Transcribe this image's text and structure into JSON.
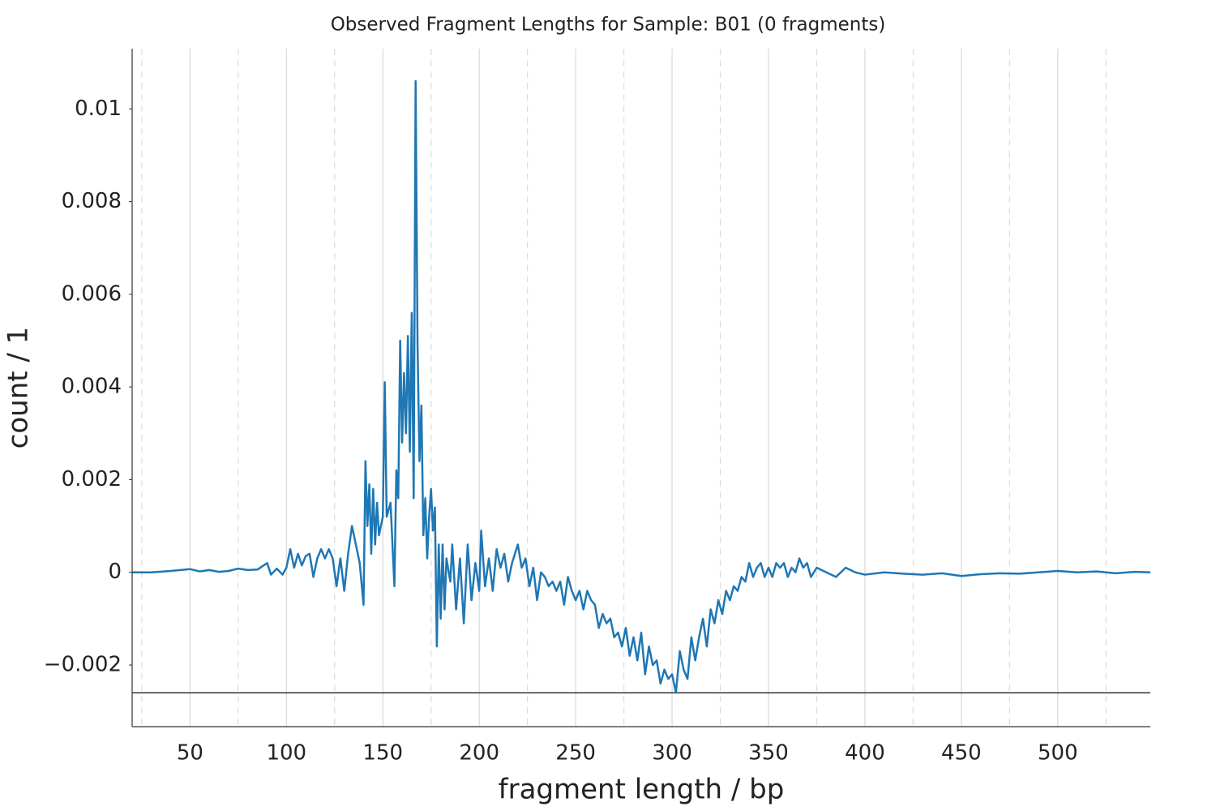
{
  "chart_data": {
    "type": "line",
    "title": "Observed Fragment Lengths for Sample: B01 (0 fragments)",
    "xlabel": "fragment length / bp",
    "ylabel": "count / 1",
    "x": [
      20,
      30,
      40,
      50,
      55,
      60,
      65,
      70,
      75,
      80,
      85,
      90,
      92,
      95,
      98,
      100,
      102,
      104,
      106,
      108,
      110,
      112,
      114,
      116,
      118,
      120,
      122,
      124,
      126,
      128,
      130,
      132,
      134,
      136,
      138,
      140,
      141,
      142,
      143,
      144,
      145,
      146,
      147,
      148,
      150,
      151,
      152,
      154,
      156,
      157,
      158,
      159,
      160,
      161,
      162,
      163,
      164,
      165,
      166,
      167,
      168,
      169,
      170,
      171,
      172,
      173,
      174,
      175,
      176,
      177,
      178,
      179,
      180,
      181,
      182,
      183,
      185,
      186,
      188,
      190,
      192,
      194,
      196,
      198,
      200,
      201,
      203,
      205,
      207,
      209,
      211,
      213,
      215,
      217,
      220,
      222,
      224,
      226,
      228,
      230,
      232,
      234,
      236,
      238,
      240,
      242,
      244,
      246,
      248,
      250,
      252,
      254,
      256,
      258,
      260,
      262,
      264,
      266,
      268,
      270,
      272,
      274,
      276,
      278,
      280,
      282,
      284,
      286,
      288,
      290,
      292,
      294,
      296,
      298,
      300,
      302,
      304,
      306,
      308,
      310,
      312,
      314,
      316,
      318,
      320,
      322,
      324,
      326,
      328,
      330,
      332,
      334,
      336,
      338,
      340,
      342,
      344,
      346,
      348,
      350,
      352,
      354,
      356,
      358,
      360,
      362,
      364,
      366,
      368,
      370,
      372,
      375,
      380,
      385,
      390,
      395,
      400,
      410,
      420,
      430,
      440,
      450,
      460,
      470,
      480,
      490,
      500,
      510,
      520,
      530,
      540,
      548
    ],
    "values": [
      0,
      0,
      3e-05,
      7e-05,
      2e-05,
      5e-05,
      1e-05,
      3e-05,
      8e-05,
      5e-05,
      6e-05,
      0.0002,
      -5e-05,
      8e-05,
      -5e-05,
      0.0001,
      0.0005,
      0.0001,
      0.0004,
      0.00015,
      0.00035,
      0.0004,
      -0.0001,
      0.0003,
      0.0005,
      0.0003,
      0.0005,
      0.0003,
      -0.0003,
      0.0003,
      -0.0004,
      0.0004,
      0.001,
      0.0006,
      0.0002,
      -0.0007,
      0.0024,
      0.001,
      0.0019,
      0.0004,
      0.0018,
      0.0006,
      0.0015,
      0.0008,
      0.0012,
      0.0041,
      0.0012,
      0.0015,
      -0.0003,
      0.0022,
      0.0016,
      0.005,
      0.0028,
      0.0043,
      0.003,
      0.0051,
      0.0026,
      0.0056,
      0.0016,
      0.0106,
      0.0049,
      0.0024,
      0.0036,
      0.0008,
      0.0016,
      0.0003,
      0.0012,
      0.0018,
      0.0009,
      0.0014,
      -0.0016,
      0.0006,
      -0.001,
      0.0006,
      -0.0008,
      0.0003,
      -0.0002,
      0.0006,
      -0.0008,
      0.0003,
      -0.0011,
      0.0006,
      -0.0006,
      0.0002,
      -0.0004,
      0.0009,
      -0.0003,
      0.0003,
      -0.0004,
      0.0005,
      0.0001,
      0.0004,
      -0.0002,
      0.0002,
      0.0006,
      0.0001,
      0.0003,
      -0.0003,
      0.0001,
      -0.0006,
      0,
      -0.0001,
      -0.0003,
      -0.0002,
      -0.0004,
      -0.0002,
      -0.0007,
      -0.0001,
      -0.0004,
      -0.0006,
      -0.0004,
      -0.0008,
      -0.0004,
      -0.0006,
      -0.0007,
      -0.0012,
      -0.0009,
      -0.0011,
      -0.001,
      -0.0014,
      -0.0013,
      -0.0016,
      -0.0012,
      -0.0018,
      -0.0014,
      -0.0019,
      -0.0013,
      -0.0022,
      -0.0016,
      -0.002,
      -0.0019,
      -0.0024,
      -0.0021,
      -0.0023,
      -0.0022,
      -0.0026,
      -0.0017,
      -0.0021,
      -0.0023,
      -0.0014,
      -0.0019,
      -0.0014,
      -0.001,
      -0.0016,
      -0.0008,
      -0.0011,
      -0.0006,
      -0.0009,
      -0.0004,
      -0.0006,
      -0.0003,
      -0.0004,
      -0.0001,
      -0.0002,
      0.0002,
      -0.0001,
      0.0001,
      0.0002,
      -0.0001,
      0.0001,
      -0.0001,
      0.0002,
      0.0001,
      0.0002,
      -0.0001,
      0.0001,
      0,
      0.0003,
      0.0001,
      0.0002,
      -0.0001,
      0.0001,
      0,
      -0.0001,
      0.0001,
      0,
      -5e-05,
      0,
      -3e-05,
      -5e-05,
      -2e-05,
      -8e-05,
      -4e-05,
      -2e-05,
      -3e-05,
      0,
      3e-05,
      0,
      2e-05,
      -2e-05,
      1e-05,
      0
    ],
    "color": "#1f77b4",
    "hline": -0.0026,
    "hline_color": "#333333",
    "xlim": [
      20,
      548
    ],
    "ylim": [
      -0.00333,
      0.0113
    ],
    "xticks": [
      50,
      100,
      150,
      200,
      250,
      300,
      350,
      400,
      450,
      500
    ],
    "xminor": [
      25,
      75,
      125,
      175,
      225,
      275,
      325,
      375,
      425,
      475,
      525
    ],
    "yticks": [
      {
        "value": -0.002,
        "label": "−0.002"
      },
      0,
      0.002,
      0.004,
      0.006,
      0.008,
      0.01
    ],
    "grid": true
  }
}
